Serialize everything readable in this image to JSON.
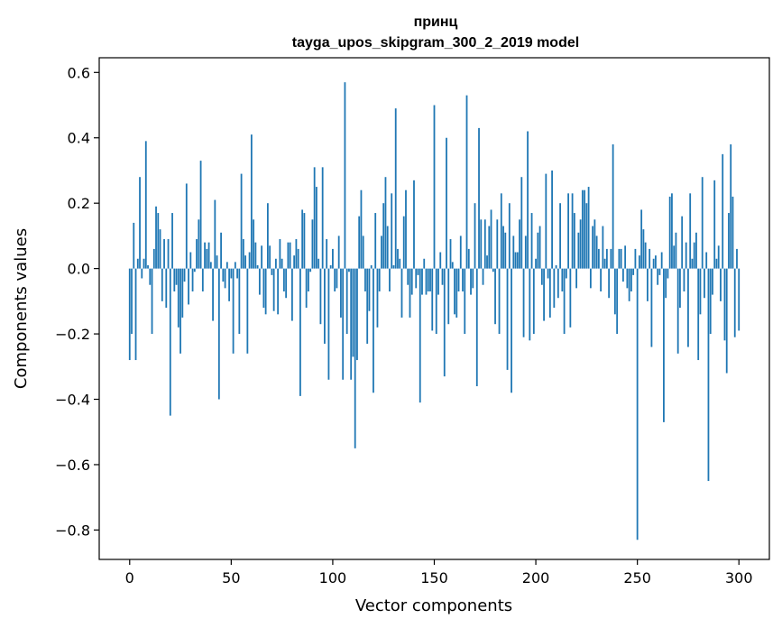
{
  "chart_data": {
    "type": "bar",
    "title": "принц",
    "subtitle": "tayga_upos_skipgram_300_2_2019 model",
    "xlabel": "Vector components",
    "ylabel": "Components values",
    "xlim": [
      -15,
      315
    ],
    "ylim": [
      -0.89,
      0.645
    ],
    "xticks": [
      0,
      50,
      100,
      150,
      200,
      250,
      300
    ],
    "xtick_labels": [
      "0",
      "50",
      "100",
      "150",
      "200",
      "250",
      "300"
    ],
    "yticks": [
      -0.8,
      -0.6,
      -0.4,
      -0.2,
      0.0,
      0.2,
      0.4,
      0.6
    ],
    "ytick_labels": [
      "−0.8",
      "−0.6",
      "−0.4",
      "−0.2",
      "0.0",
      "0.2",
      "0.4",
      "0.6"
    ],
    "grid": false,
    "bar_color": "#1f77b4",
    "series": [
      {
        "name": "components",
        "values": [
          -0.28,
          -0.2,
          0.14,
          -0.28,
          0.03,
          0.28,
          -0.03,
          0.03,
          0.39,
          0.01,
          -0.05,
          -0.2,
          0.06,
          0.19,
          0.17,
          0.12,
          -0.1,
          0.09,
          -0.12,
          0.09,
          -0.45,
          0.17,
          -0.07,
          -0.05,
          -0.18,
          -0.26,
          -0.15,
          -0.04,
          0.26,
          -0.11,
          0.05,
          -0.07,
          -0.01,
          0.09,
          0.15,
          0.33,
          -0.07,
          0.08,
          0.06,
          0.08,
          0.02,
          -0.16,
          0.21,
          0.04,
          -0.4,
          0.11,
          -0.04,
          -0.06,
          0.02,
          -0.1,
          -0.03,
          -0.26,
          0.02,
          -0.03,
          -0.2,
          0.29,
          0.09,
          0.04,
          -0.26,
          0.05,
          0.41,
          0.15,
          0.08,
          0.01,
          -0.08,
          0.07,
          -0.12,
          -0.14,
          0.2,
          0.07,
          -0.02,
          -0.13,
          0.03,
          -0.14,
          0.09,
          0.03,
          -0.07,
          -0.09,
          0.08,
          0.08,
          -0.16,
          0.04,
          0.09,
          0.06,
          -0.39,
          0.18,
          0.17,
          -0.12,
          -0.07,
          -0.01,
          0.15,
          0.31,
          0.25,
          0.03,
          -0.17,
          0.31,
          -0.23,
          0.09,
          -0.34,
          0.01,
          0.06,
          -0.07,
          -0.06,
          0.1,
          -0.15,
          -0.34,
          0.57,
          -0.2,
          -0.01,
          -0.34,
          -0.27,
          -0.55,
          -0.28,
          0.16,
          0.24,
          0.1,
          -0.07,
          -0.23,
          -0.13,
          0.01,
          -0.38,
          0.17,
          -0.18,
          -0.07,
          0.1,
          0.2,
          0.28,
          0.13,
          -0.07,
          0.23,
          0.01,
          0.49,
          0.06,
          0.03,
          -0.15,
          0.16,
          0.24,
          -0.05,
          -0.15,
          -0.08,
          0.27,
          -0.06,
          -0.02,
          -0.41,
          -0.08,
          0.03,
          -0.08,
          -0.07,
          -0.07,
          -0.19,
          0.5,
          -0.2,
          -0.08,
          0.05,
          -0.05,
          -0.33,
          0.4,
          -0.17,
          0.09,
          0.02,
          -0.14,
          -0.15,
          -0.07,
          0.1,
          -0.07,
          -0.2,
          0.53,
          0.06,
          -0.08,
          -0.06,
          0.2,
          -0.36,
          0.43,
          0.15,
          -0.05,
          0.15,
          0.04,
          0.13,
          0.18,
          -0.01,
          -0.17,
          0.15,
          -0.2,
          0.23,
          0.13,
          0.11,
          -0.31,
          0.2,
          -0.38,
          0.1,
          0.05,
          0.05,
          0.15,
          0.28,
          -0.21,
          0.1,
          0.42,
          -0.22,
          0.17,
          -0.2,
          0.03,
          0.11,
          0.13,
          -0.05,
          -0.16,
          0.29,
          -0.03,
          -0.15,
          0.3,
          -0.12,
          0.01,
          -0.09,
          0.2,
          -0.07,
          -0.2,
          -0.03,
          0.23,
          -0.18,
          0.23,
          0.17,
          -0.06,
          0.11,
          0.15,
          0.24,
          0.24,
          0.2,
          0.25,
          -0.06,
          0.13,
          0.15,
          0.1,
          0.06,
          -0.07,
          0.13,
          0.03,
          0.06,
          -0.09,
          0.06,
          0.38,
          -0.14,
          -0.2,
          0.06,
          0.06,
          -0.04,
          0.07,
          -0.06,
          -0.1,
          -0.07,
          -0.02,
          0.06,
          -0.83,
          0.04,
          0.18,
          0.12,
          0.08,
          -0.1,
          0.06,
          -0.24,
          0.03,
          0.04,
          -0.05,
          -0.02,
          0.05,
          -0.47,
          -0.09,
          -0.03,
          0.22,
          0.23,
          0.07,
          0.11,
          -0.26,
          -0.12,
          0.16,
          -0.07,
          0.08,
          -0.24,
          0.23,
          0.03,
          0.08,
          0.11,
          -0.28,
          -0.14,
          0.28,
          -0.09,
          0.05,
          -0.65,
          -0.2,
          -0.08,
          0.27,
          0.03,
          0.07,
          -0.1,
          0.35,
          -0.22,
          -0.32,
          0.17,
          0.38,
          0.22,
          -0.21,
          0.06,
          -0.19
        ]
      }
    ]
  }
}
